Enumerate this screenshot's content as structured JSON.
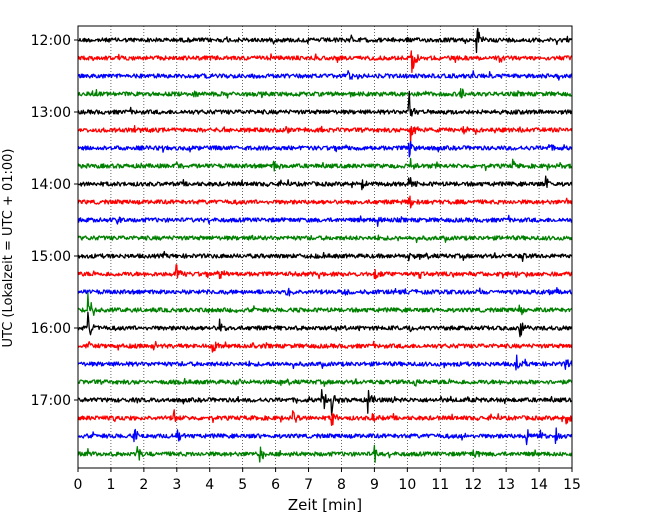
{
  "chart_data": {
    "type": "line",
    "title": "",
    "xlabel": "Zeit  [min]",
    "ylabel": "UTC (Lokalzeit = UTC + 01:00)",
    "xlim": [
      0,
      15
    ],
    "x_ticks": [
      0,
      1,
      2,
      3,
      4,
      5,
      6,
      7,
      8,
      9,
      10,
      11,
      12,
      13,
      14,
      15
    ],
    "y_tick_labels": [
      "12:00",
      "13:00",
      "14:00",
      "15:00",
      "16:00",
      "17:00"
    ],
    "trace_interval_min": 15,
    "grid": "vertical dotted at each minute",
    "trace_colors": [
      "#000000",
      "#ff0000",
      "#0000ff",
      "#008000"
    ],
    "series": [
      {
        "start": "12:00",
        "color": "#000000",
        "events": [
          {
            "t": 8.3,
            "amp": 0.4
          },
          {
            "t": 12.1,
            "amp": 0.9
          }
        ]
      },
      {
        "start": "12:15",
        "color": "#ff0000",
        "events": [
          {
            "t": 10.1,
            "amp": 1.4
          }
        ]
      },
      {
        "start": "12:30",
        "color": "#0000ff",
        "events": [
          {
            "t": 8.2,
            "amp": 0.3
          },
          {
            "t": 12.0,
            "amp": 0.3
          }
        ]
      },
      {
        "start": "12:45",
        "color": "#008000",
        "events": [
          {
            "t": 11.6,
            "amp": 0.6
          },
          {
            "t": 3.5,
            "amp": 0.3
          }
        ]
      },
      {
        "start": "13:00",
        "color": "#000000",
        "events": [
          {
            "t": 10.05,
            "amp": 1.2
          }
        ]
      },
      {
        "start": "13:15",
        "color": "#ff0000",
        "events": [
          {
            "t": 10.1,
            "amp": 0.9
          },
          {
            "t": 11.7,
            "amp": 0.4
          },
          {
            "t": 13.4,
            "amp": 0.3
          }
        ]
      },
      {
        "start": "13:30",
        "color": "#0000ff",
        "events": [
          {
            "t": 10.05,
            "amp": 0.6
          },
          {
            "t": 14.3,
            "amp": 0.3
          }
        ]
      },
      {
        "start": "13:45",
        "color": "#008000",
        "events": [
          {
            "t": 5.95,
            "amp": 0.5
          },
          {
            "t": 13.2,
            "amp": 0.4
          },
          {
            "t": 10.1,
            "amp": 0.6
          },
          {
            "t": 3.0,
            "amp": 0.3
          }
        ]
      },
      {
        "start": "14:00",
        "color": "#000000",
        "events": [
          {
            "t": 10.05,
            "amp": 0.6
          },
          {
            "t": 14.2,
            "amp": 0.4
          },
          {
            "t": 8.6,
            "amp": 0.3
          }
        ]
      },
      {
        "start": "14:15",
        "color": "#ff0000",
        "events": [
          {
            "t": 10.05,
            "amp": 0.6
          },
          {
            "t": 14.8,
            "amp": 0.3
          }
        ]
      },
      {
        "start": "14:30",
        "color": "#0000ff",
        "events": [
          {
            "t": 9.1,
            "amp": 0.4
          },
          {
            "t": 1.2,
            "amp": 0.3
          }
        ]
      },
      {
        "start": "14:45",
        "color": "#008000",
        "events": [
          {
            "t": 9.6,
            "amp": 0.3
          },
          {
            "t": 5.3,
            "amp": 0.2
          }
        ]
      },
      {
        "start": "15:00",
        "color": "#000000",
        "events": [
          {
            "t": 10.0,
            "amp": 0.4
          },
          {
            "t": 6.9,
            "amp": 0.3
          },
          {
            "t": 13.5,
            "amp": 0.3
          }
        ]
      },
      {
        "start": "15:15",
        "color": "#ff0000",
        "events": [
          {
            "t": 3.0,
            "amp": 0.7
          },
          {
            "t": 9.0,
            "amp": 0.4
          },
          {
            "t": 4.3,
            "amp": 0.3
          }
        ]
      },
      {
        "start": "15:30",
        "color": "#0000ff",
        "events": [
          {
            "t": 6.3,
            "amp": 0.4
          },
          {
            "t": 8.1,
            "amp": 0.3
          },
          {
            "t": 14.2,
            "amp": 0.3
          }
        ]
      },
      {
        "start": "15:45",
        "color": "#008000",
        "events": [
          {
            "t": 0.3,
            "amp": 1.6
          },
          {
            "t": 13.4,
            "amp": 0.4
          }
        ]
      },
      {
        "start": "16:00",
        "color": "#000000",
        "events": [
          {
            "t": 0.3,
            "amp": 1.0
          },
          {
            "t": 4.3,
            "amp": 0.5
          },
          {
            "t": 10.0,
            "amp": 0.5
          },
          {
            "t": 13.4,
            "amp": 0.8
          }
        ]
      },
      {
        "start": "16:15",
        "color": "#ff0000",
        "events": [
          {
            "t": 0.3,
            "amp": 0.6
          },
          {
            "t": 4.1,
            "amp": 0.5
          },
          {
            "t": 5.3,
            "amp": 0.4
          }
        ]
      },
      {
        "start": "16:30",
        "color": "#0000ff",
        "events": [
          {
            "t": 13.3,
            "amp": 0.6
          },
          {
            "t": 14.8,
            "amp": 0.5
          },
          {
            "t": 11.1,
            "amp": 0.4
          }
        ]
      },
      {
        "start": "16:45",
        "color": "#008000",
        "events": [
          {
            "t": 2.0,
            "amp": 0.3
          },
          {
            "t": 4.8,
            "amp": 0.3
          },
          {
            "t": 10.2,
            "amp": 0.3
          }
        ]
      },
      {
        "start": "17:00",
        "color": "#000000",
        "events": [
          {
            "t": 7.4,
            "amp": 1.0
          },
          {
            "t": 7.7,
            "amp": 0.9
          },
          {
            "t": 8.8,
            "amp": 0.8
          },
          {
            "t": 9.5,
            "amp": 0.5
          },
          {
            "t": 4.8,
            "amp": 0.3
          }
        ]
      },
      {
        "start": "17:15",
        "color": "#ff0000",
        "events": [
          {
            "t": 2.9,
            "amp": 0.6
          },
          {
            "t": 6.5,
            "amp": 0.5
          },
          {
            "t": 7.7,
            "amp": 0.6
          },
          {
            "t": 8.9,
            "amp": 0.4
          },
          {
            "t": 14.8,
            "amp": 0.4
          },
          {
            "t": 1.1,
            "amp": 0.3
          }
        ]
      },
      {
        "start": "17:30",
        "color": "#0000ff",
        "events": [
          {
            "t": 1.7,
            "amp": 0.5
          },
          {
            "t": 3.0,
            "amp": 0.4
          },
          {
            "t": 13.6,
            "amp": 0.8
          },
          {
            "t": 14.0,
            "amp": 0.5
          },
          {
            "t": 14.5,
            "amp": 0.5
          },
          {
            "t": 11.6,
            "amp": 0.3
          }
        ]
      },
      {
        "start": "17:45",
        "color": "#008000",
        "events": [
          {
            "t": 1.8,
            "amp": 0.6
          },
          {
            "t": 5.5,
            "amp": 0.6
          },
          {
            "t": 9.0,
            "amp": 0.5
          },
          {
            "t": 12.0,
            "amp": 0.4
          },
          {
            "t": 0.3,
            "amp": 0.4
          }
        ]
      }
    ]
  }
}
